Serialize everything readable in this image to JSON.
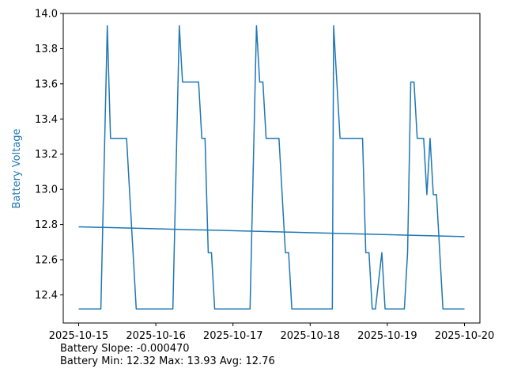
{
  "chart_data": {
    "type": "line",
    "ylabel": "Battery Voltage",
    "ylabel_color": "#1f77b4",
    "line_color": "#1f77b4",
    "x_tick_labels": [
      "2025-10-15",
      "2025-10-16",
      "2025-10-17",
      "2025-10-18",
      "2025-10-19",
      "2025-10-20"
    ],
    "y_tick_labels": [
      "12.4",
      "12.6",
      "12.8",
      "13.0",
      "13.2",
      "13.4",
      "13.6",
      "13.8",
      "14.0"
    ],
    "y_ticks": [
      12.4,
      12.6,
      12.8,
      13.0,
      13.2,
      13.4,
      13.6,
      13.8,
      14.0
    ],
    "xlim": [
      "2025-10-14 19:12",
      "2025-10-20 04:48"
    ],
    "ylim": [
      12.24,
      14.0
    ],
    "grid": false,
    "series": [
      {
        "points": [
          [
            "2025-10-15 00:00",
            12.32
          ],
          [
            "2025-10-15 06:54",
            12.32
          ],
          [
            "2025-10-15 08:54",
            13.93
          ],
          [
            "2025-10-15 09:54",
            13.29
          ],
          [
            "2025-10-15 14:54",
            13.29
          ],
          [
            "2025-10-15 17:54",
            12.32
          ],
          [
            "2025-10-16 05:18",
            12.32
          ],
          [
            "2025-10-16 07:18",
            13.93
          ],
          [
            "2025-10-16 08:18",
            13.61
          ],
          [
            "2025-10-16 13:18",
            13.61
          ],
          [
            "2025-10-16 14:18",
            13.29
          ],
          [
            "2025-10-16 15:18",
            13.29
          ],
          [
            "2025-10-16 16:18",
            12.64
          ],
          [
            "2025-10-16 17:18",
            12.64
          ],
          [
            "2025-10-16 18:18",
            12.32
          ],
          [
            "2025-10-17 05:18",
            12.32
          ],
          [
            "2025-10-17 07:18",
            13.93
          ],
          [
            "2025-10-17 08:18",
            13.61
          ],
          [
            "2025-10-17 09:18",
            13.61
          ],
          [
            "2025-10-17 10:18",
            13.29
          ],
          [
            "2025-10-17 14:18",
            13.29
          ],
          [
            "2025-10-17 16:18",
            12.64
          ],
          [
            "2025-10-17 17:18",
            12.64
          ],
          [
            "2025-10-17 18:18",
            12.32
          ],
          [
            "2025-10-18 06:54",
            12.32
          ],
          [
            "2025-10-18 07:18",
            13.93
          ],
          [
            "2025-10-18 09:18",
            13.29
          ],
          [
            "2025-10-18 16:18",
            13.29
          ],
          [
            "2025-10-18 17:18",
            12.64
          ],
          [
            "2025-10-18 18:18",
            12.64
          ],
          [
            "2025-10-18 19:18",
            12.32
          ],
          [
            "2025-10-18 20:18",
            12.32
          ],
          [
            "2025-10-18 22:18",
            12.64
          ],
          [
            "2025-10-18 23:18",
            12.32
          ],
          [
            "2025-10-19 05:18",
            12.32
          ],
          [
            "2025-10-19 06:18",
            12.64
          ],
          [
            "2025-10-19 07:18",
            13.61
          ],
          [
            "2025-10-19 08:18",
            13.61
          ],
          [
            "2025-10-19 09:18",
            13.29
          ],
          [
            "2025-10-19 11:18",
            13.29
          ],
          [
            "2025-10-19 12:18",
            12.97
          ],
          [
            "2025-10-19 13:18",
            13.29
          ],
          [
            "2025-10-19 14:18",
            12.97
          ],
          [
            "2025-10-19 15:18",
            12.97
          ],
          [
            "2025-10-19 17:18",
            12.32
          ],
          [
            "2025-10-20 00:00",
            12.32
          ]
        ]
      },
      {
        "points": [
          [
            "2025-10-15 00:00",
            12.787
          ],
          [
            "2025-10-20 00:00",
            12.731
          ]
        ]
      }
    ]
  },
  "stats": {
    "slope_line": "Battery Slope: -0.000470",
    "range_line": "Battery Min: 12.32 Max: 13.93 Avg: 12.76"
  }
}
